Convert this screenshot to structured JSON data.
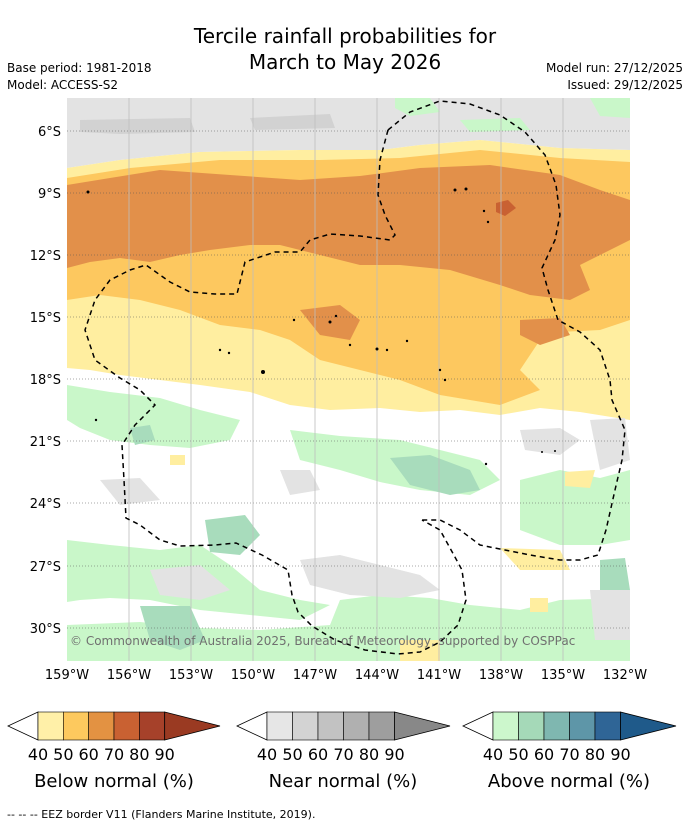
{
  "title_line1": "Tercile rainfall probabilities for",
  "title_line2": "March to May 2026",
  "base_period": "Base period: 1981-2018",
  "model": "Model: ACCESS-S2",
  "model_run": "Model run: 27/12/2025",
  "issued": "Issued: 29/12/2025",
  "lat_labels": [
    "6°S",
    "9°S",
    "12°S",
    "15°S",
    "18°S",
    "21°S",
    "24°S",
    "27°S",
    "30°S"
  ],
  "lon_labels": [
    "159°W",
    "156°W",
    "153°W",
    "150°W",
    "147°W",
    "144°W",
    "141°W",
    "138°W",
    "135°W",
    "132°W"
  ],
  "copyright": "© Commonwealth of Australia 2025, Bureau of Meteorology, supported by COSPPac",
  "colorbars": [
    {
      "name": "below",
      "title": "Below normal (%)",
      "ticks": [
        "40",
        "50",
        "60",
        "70",
        "80",
        "90"
      ],
      "colors": [
        "#fff0a8",
        "#fdc95e",
        "#e39242",
        "#c96132",
        "#a6412a",
        "#9a3a22"
      ]
    },
    {
      "name": "near",
      "title": "Near normal (%)",
      "ticks": [
        "40",
        "50",
        "60",
        "70",
        "80",
        "90"
      ],
      "colors": [
        "#e6e6e6",
        "#d3d3d3",
        "#c2c2c2",
        "#b0b0b0",
        "#9e9e9e",
        "#888888"
      ]
    },
    {
      "name": "above",
      "title": "Above normal (%)",
      "ticks": [
        "40",
        "50",
        "60",
        "70",
        "80",
        "90"
      ],
      "colors": [
        "#ccf7cc",
        "#a5d9b8",
        "#7fb7b0",
        "#5e96a8",
        "#2f6596",
        "#1f5a8a"
      ]
    }
  ],
  "eez_note": "-- -- -- EEZ border V11 (Flanders Marine Institute, 2019).",
  "colors": {
    "below_40": "#ffeea0",
    "below_50": "#fdc85f",
    "below_60": "#e2904a",
    "near_40": "#e3e3e3",
    "near_50": "#d2d2d2",
    "above_40": "#c9f7c9",
    "above_50": "#a8dcbc"
  }
}
